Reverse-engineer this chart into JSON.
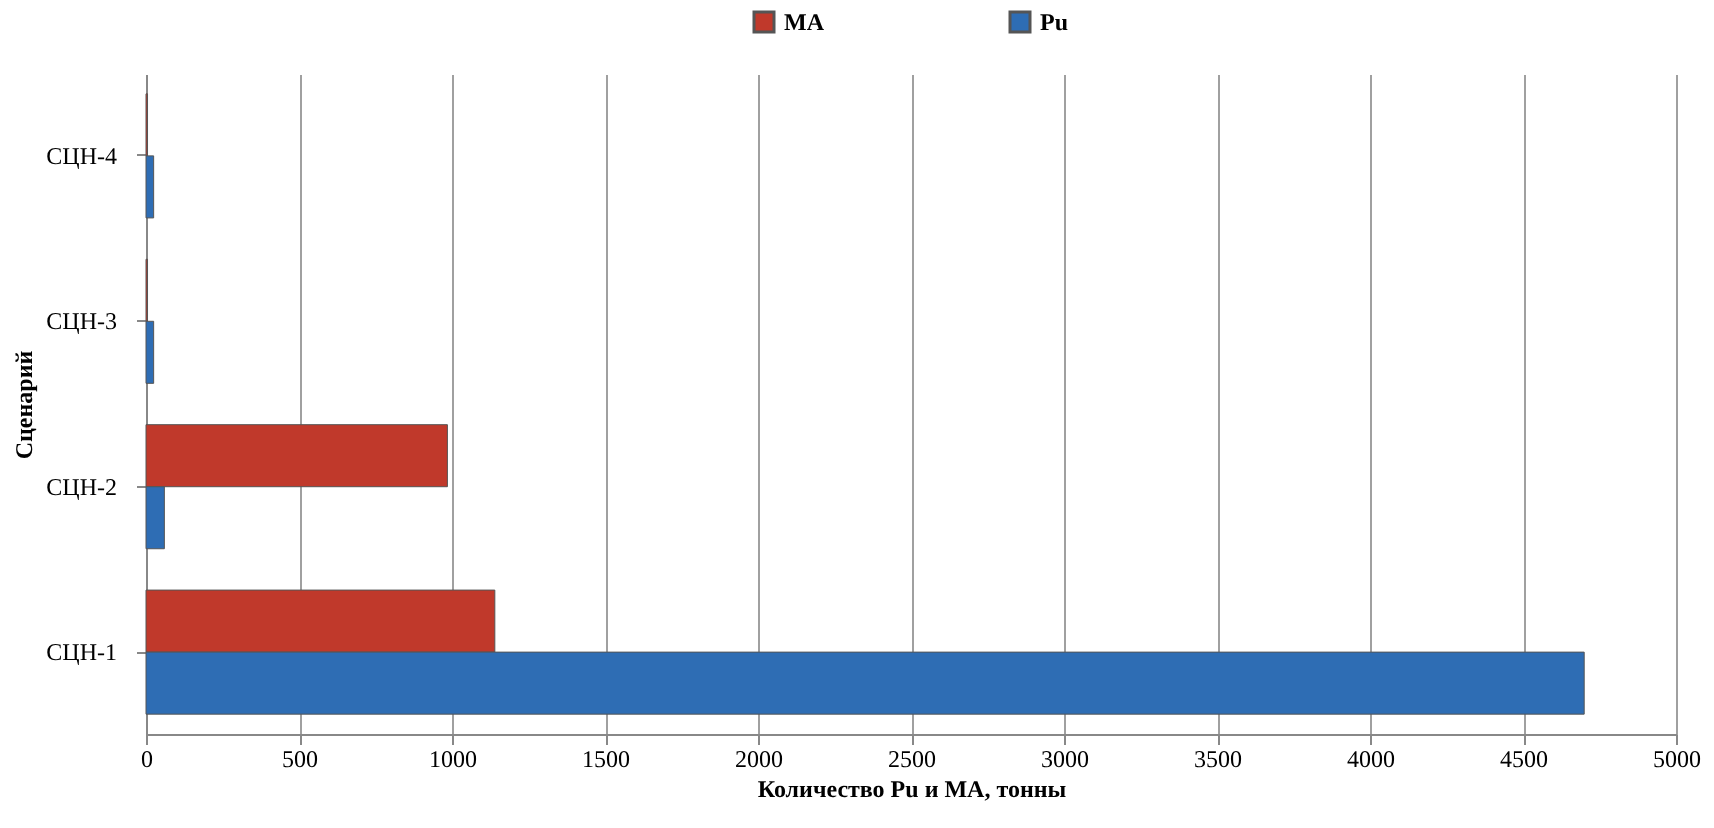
{
  "chart_data": {
    "type": "bar",
    "orientation": "horizontal",
    "xlabel": "Количество Pu и МА, тонны",
    "ylabel": "Сценарий",
    "categories": [
      "СЦН-4",
      "СЦН-3",
      "СЦН-2",
      "СЦН-1"
    ],
    "series": [
      {
        "name": "МА",
        "color": "#c0392b",
        "values": [
          5,
          5,
          985,
          1140
        ]
      },
      {
        "name": "Pu",
        "color": "#2e6db4",
        "values": [
          25,
          25,
          60,
          4700
        ]
      }
    ],
    "xlim": [
      0,
      5000
    ],
    "xticks": [
      0,
      500,
      1000,
      1500,
      2000,
      2500,
      3000,
      3500,
      4000,
      4500,
      5000
    ],
    "grid": "x",
    "legend": "top"
  }
}
